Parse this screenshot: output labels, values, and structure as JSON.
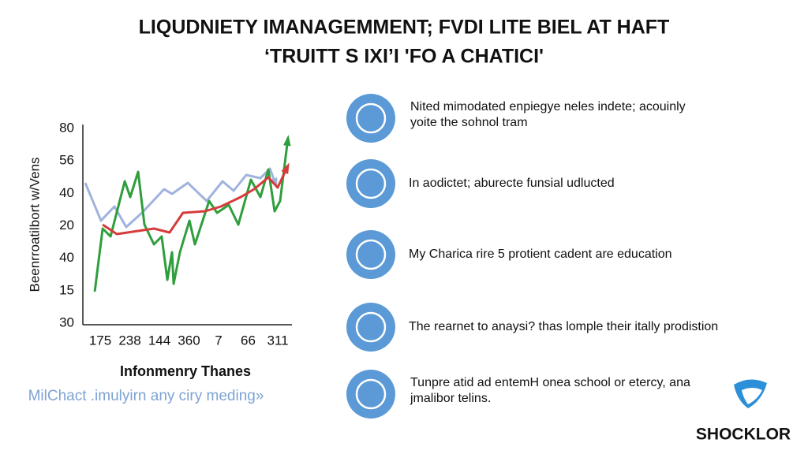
{
  "title": [
    "LIQUDNIETY IMANAGEMMENT; FVDI LITE BIEL AT HAFT",
    "‘TRUITT S IXI’I 'FO A CHATICI'"
  ],
  "chart_data": {
    "type": "line",
    "ylabel": "Beenrroatilbort w/Vens",
    "xlabel": "Infonmenry Thanes",
    "subtitle": "MilChact .imulyirn any ciry meding»",
    "categories": [
      "175",
      "238",
      "144",
      "360",
      "7",
      "66",
      "311"
    ],
    "y_axis_labels": [
      "80",
      "56",
      "40",
      "20",
      "40",
      "15",
      "30"
    ],
    "xlim": [
      0,
      100
    ],
    "ylim": [
      0,
      100
    ],
    "series": [
      {
        "color": "#9fb3dd",
        "x": [
          0,
          7.8,
          14.4,
          20.2,
          28,
          38.9,
          42.8,
          50.6,
          59.9,
          67.7,
          73.2,
          79.4,
          86.4,
          91.1,
          94.2
        ],
        "values": [
          71.2,
          52,
          59.2,
          48.8,
          56,
          68,
          65.6,
          71.2,
          62,
          72,
          67.2,
          75.2,
          73.6,
          78.4,
          69.6
        ]
      },
      {
        "color": "#2f9e3c",
        "x": [
          4.7,
          8.6,
          12.5,
          19.5,
          22.2,
          26.1,
          29.2,
          33.9,
          37.7,
          40.5,
          42.8,
          43.6,
          46.7,
          51.4,
          54.1,
          61.1,
          65,
          70.8,
          75.5,
          81.7,
          86.4,
          90.3,
          93.4,
          96.1,
          100
        ],
        "values": [
          16,
          48,
          44,
          72,
          64,
          76.8,
          50,
          40,
          44,
          22,
          36,
          20,
          36,
          52,
          40,
          62,
          56,
          60,
          50,
          72.8,
          64,
          78,
          56.8,
          62,
          94
        ]
      },
      {
        "color": "#d63b3b",
        "x": [
          8.6,
          15.6,
          33.9,
          41.6,
          48.2,
          59.1,
          66.9,
          76.7,
          83.3,
          90.3,
          94.9,
          100
        ],
        "values": [
          50,
          45.2,
          48,
          46,
          56,
          56.8,
          59.2,
          64,
          68,
          74,
          68.8,
          80
        ]
      }
    ]
  },
  "features": [
    {
      "lines": [
        "Nited mimodated enpiegye neles indete; acouinly",
        "yoite the sohnol tram"
      ]
    },
    {
      "lines": [
        "In aodictet; aburecte funsial udlucted"
      ]
    },
    {
      "lines": [
        "My Charica rire 5 protient cadent are education"
      ]
    },
    {
      "lines": [
        "The rearnet to anaysi? thas lomple their itally prodistion"
      ]
    },
    {
      "lines": [
        "Tunpre atid ad entemH onea school or etercy, ana",
        "jmalibor telins."
      ]
    }
  ],
  "logo": "SHOCKLOR"
}
